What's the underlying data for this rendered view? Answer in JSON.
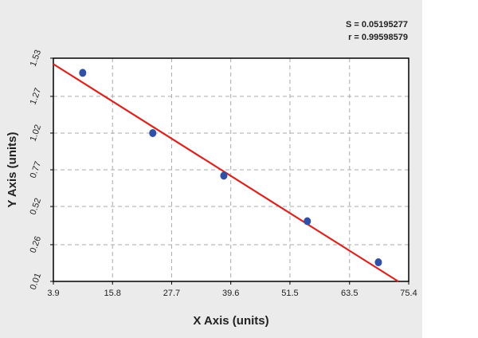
{
  "chart_data": {
    "type": "scatter",
    "annotations": [
      "S = 0.05195277",
      "r = 0.99598579"
    ],
    "x_label": "X Axis (units)",
    "y_label": "Y Axis (units)",
    "x": [
      9.8,
      23.9,
      38.2,
      55.0,
      69.3
    ],
    "values": [
      1.43,
      1.02,
      0.73,
      0.42,
      0.14
    ],
    "color": "#2f4fa8",
    "fit": {
      "x": [
        3.9,
        73.3
      ],
      "values": [
        1.49,
        0.01
      ],
      "color": "#e0201b"
    },
    "xlim": [
      3.9,
      75.4
    ],
    "xticks": [
      3.9,
      15.8,
      27.7,
      39.6,
      51.5,
      63.5,
      75.4
    ],
    "ylim": [
      0.01,
      1.53
    ],
    "yticks": [
      0.01,
      0.26,
      0.52,
      0.77,
      1.02,
      1.27,
      1.53
    ],
    "grid": true
  }
}
